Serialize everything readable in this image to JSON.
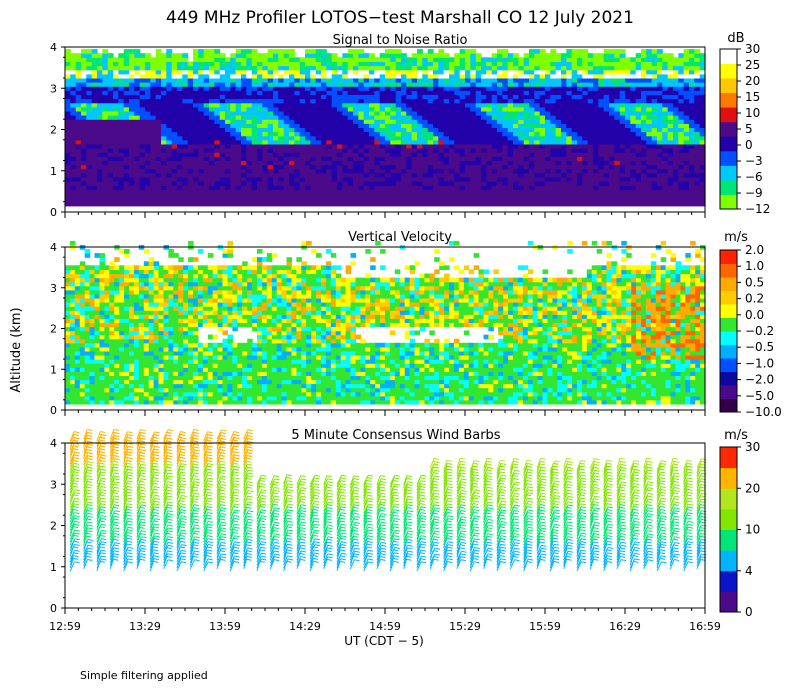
{
  "figure_title": "449 MHz Profiler LOTOS−test Marshall CO 12 July 2021",
  "ylabel": "Altitude (km)",
  "xlabel": "UT  (CDT − 5)",
  "footnote": "Simple filtering applied",
  "x_ticks": [
    "12:59",
    "13:29",
    "13:59",
    "14:29",
    "14:59",
    "15:29",
    "15:59",
    "16:29",
    "16:59"
  ],
  "colors": {
    "snr": [
      "#80ff00",
      "#00e676",
      "#00c8ff",
      "#0050ff",
      "#2200aa",
      "#4a0a8a",
      "#e01010",
      "#ff7800",
      "#ffc800",
      "#ffff00",
      "#ffffff"
    ],
    "vv": [
      "#320046",
      "#4a0a8a",
      "#0a0aa0",
      "#0050ff",
      "#00b0ff",
      "#00ffff",
      "#32e632",
      "#ffff00",
      "#ffcc00",
      "#ffaa00",
      "#ff6600",
      "#ff2200"
    ],
    "wind": [
      "#4a0a8a",
      "#0a14c8",
      "#00b4ff",
      "#00e678",
      "#82e600",
      "#b4e61e",
      "#ffb400",
      "#ff2800"
    ]
  },
  "chart_data": [
    {
      "type": "heatmap",
      "title": "Signal to Noise Ratio",
      "units": "dB",
      "ylim": [
        0,
        4
      ],
      "y_ticks": [
        "0",
        "1",
        "2",
        "3",
        "4"
      ],
      "x_ticks": [
        "12:59",
        "13:29",
        "13:59",
        "14:29",
        "14:59",
        "15:29",
        "15:59",
        "16:29",
        "16:59"
      ],
      "colorbar_labels": [
        "30",
        "25",
        "20",
        "15",
        "10",
        "5",
        "0",
        "−3",
        "−6",
        "−9",
        "−12"
      ],
      "colorbar_levels": [
        -12,
        -9,
        -6,
        -3,
        0,
        5,
        10,
        15,
        20,
        25,
        30
      ]
    },
    {
      "type": "heatmap",
      "title": "Vertical Velocity",
      "units": "m/s",
      "ylim": [
        0,
        4
      ],
      "y_ticks": [
        "0",
        "1",
        "2",
        "3",
        "4"
      ],
      "x_ticks": [
        "12:59",
        "13:29",
        "13:59",
        "14:29",
        "14:59",
        "15:29",
        "15:59",
        "16:29",
        "16:59"
      ],
      "colorbar_labels": [
        "2.0",
        "1.0",
        "0.5",
        "0.2",
        "0.0",
        "−0.2",
        "−0.5",
        "−1.0",
        "−2.0",
        "−5.0",
        "−10.0"
      ],
      "colorbar_levels": [
        -10,
        -5,
        -2,
        -1,
        -0.5,
        -0.2,
        0,
        0.2,
        0.5,
        1,
        2
      ]
    },
    {
      "type": "scatter",
      "title": "5 Minute Consensus Wind Barbs",
      "units": "m/s",
      "ylim": [
        0,
        4
      ],
      "y_ticks": [
        "0",
        "1",
        "2",
        "3",
        "4"
      ],
      "x_ticks": [
        "12:59",
        "13:29",
        "13:59",
        "14:29",
        "14:59",
        "15:29",
        "15:59",
        "16:29",
        "16:59"
      ],
      "colorbar_labels": [
        "30",
        "20",
        "10",
        "4",
        "0"
      ],
      "colorbar_levels": [
        0,
        4,
        10,
        20,
        30
      ]
    }
  ]
}
